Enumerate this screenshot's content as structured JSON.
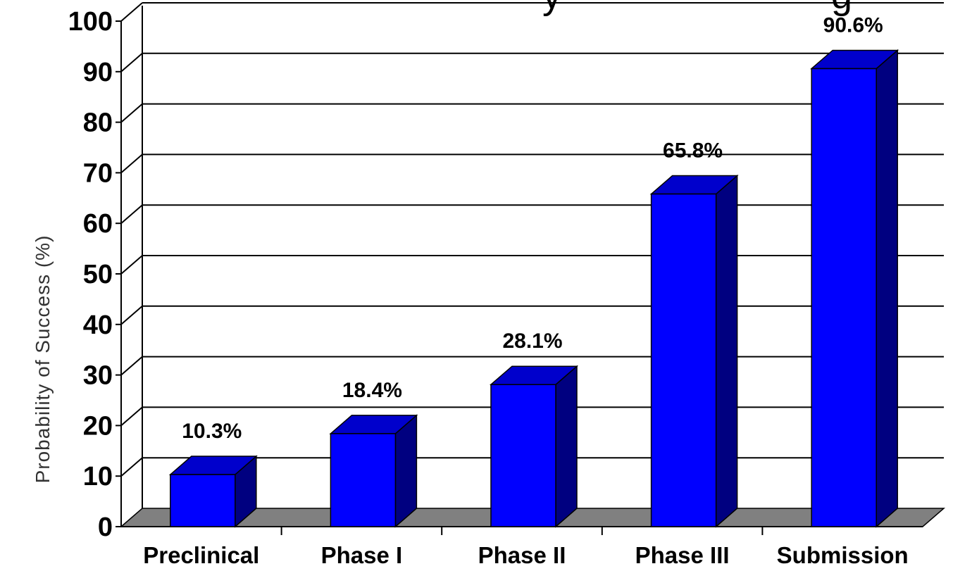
{
  "chart_data": {
    "type": "bar",
    "title": "",
    "xlabel": "",
    "ylabel": "Probability of Success (%)",
    "ylim": [
      0,
      100
    ],
    "yticks": [
      "0",
      "10",
      "20",
      "30",
      "40",
      "50",
      "60",
      "70",
      "80",
      "90",
      "100"
    ],
    "categories": [
      "Preclinical",
      "Phase I",
      "Phase II",
      "Phase III",
      "Submission"
    ],
    "values": [
      10.3,
      18.4,
      28.1,
      65.8,
      90.6
    ],
    "data_labels": [
      "10.3%",
      "18.4%",
      "28.1%",
      "65.8%",
      "90.6%"
    ],
    "grid": true,
    "legend": "none",
    "colors": {
      "bar_front": "#0000ff",
      "bar_top": "#0000cc",
      "bar_side": "#000080",
      "floor": "#808080",
      "background": "#ffffff"
    }
  }
}
